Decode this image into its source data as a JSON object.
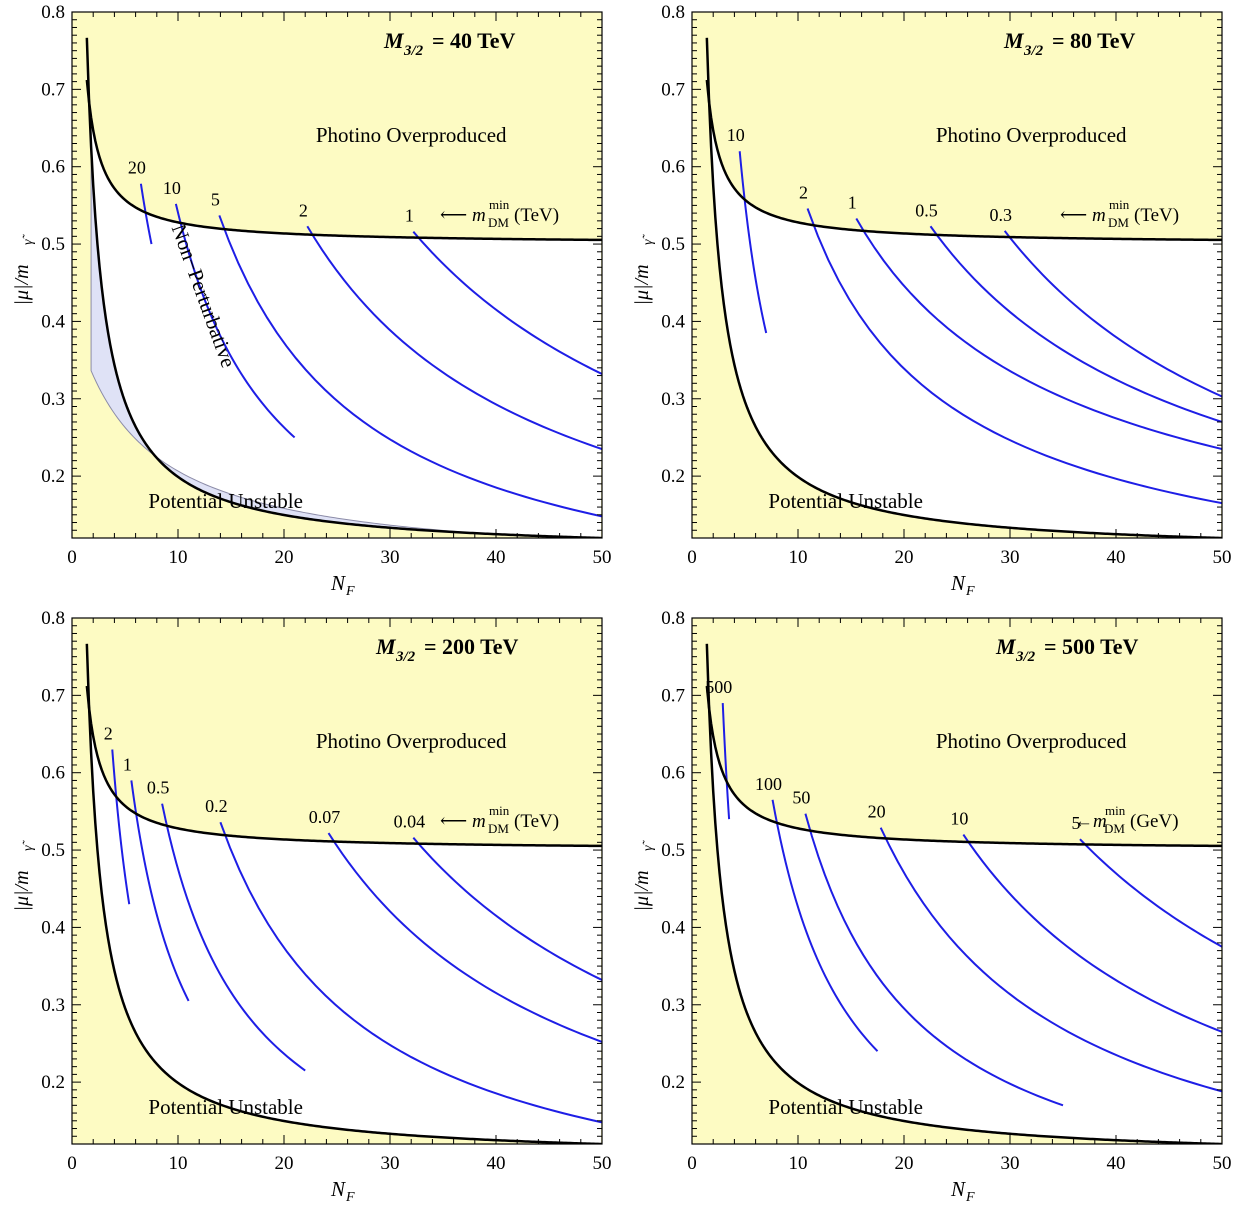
{
  "colors": {
    "region_fill": "#fdfbc3",
    "nonpert_fill": "#dfe2f6",
    "boundary": "#000000",
    "contour": "#1e1ee6"
  },
  "chart_data": [
    {
      "type": "line",
      "title_prefix": "M",
      "title_sub": "3/2",
      "title_value": "= 40 TeV",
      "xlabel_main": "N",
      "xlabel_sub": "F",
      "ylabel": "|μ|/m",
      "xlim": [
        0,
        50
      ],
      "ylim": [
        0.12,
        0.8
      ],
      "xticks": [
        "0",
        "10",
        "20",
        "30",
        "40",
        "50"
      ],
      "yticks": [
        "0.2",
        "0.3",
        "0.4",
        "0.5",
        "0.6",
        "0.7",
        "0.8"
      ],
      "region_labels": {
        "upper": "Photino Overproduced",
        "lower": "Potential Unstable",
        "nonpert": "Non−Perturbative"
      },
      "unit_label": "⟵ m",
      "unit_sup": "min",
      "unit_sub": "DM",
      "unit_tail": "(TeV)",
      "contours": [
        {
          "label": "20",
          "x": [
            6.5,
            7.5
          ],
          "y": [
            0.578,
            0.5
          ]
        },
        {
          "label": "10",
          "x": [
            9.8,
            21
          ],
          "y": [
            0.552,
            0.25
          ]
        },
        {
          "label": "5",
          "x": [
            13.9,
            50
          ],
          "y": [
            0.537,
            0.148
          ]
        },
        {
          "label": "2",
          "x": [
            22.2,
            50
          ],
          "y": [
            0.523,
            0.235
          ]
        },
        {
          "label": "1",
          "x": [
            32.2,
            50
          ],
          "y": [
            0.516,
            0.332
          ]
        }
      ]
    },
    {
      "type": "line",
      "title_prefix": "M",
      "title_sub": "3/2",
      "title_value": "= 80 TeV",
      "xlabel_main": "N",
      "xlabel_sub": "F",
      "ylabel": "|μ|/m",
      "xlim": [
        0,
        50
      ],
      "ylim": [
        0.12,
        0.8
      ],
      "xticks": [
        "0",
        "10",
        "20",
        "30",
        "40",
        "50"
      ],
      "yticks": [
        "0.2",
        "0.3",
        "0.4",
        "0.5",
        "0.6",
        "0.7",
        "0.8"
      ],
      "region_labels": {
        "upper": "Photino Overproduced",
        "lower": "Potential Unstable"
      },
      "unit_label": "⟵ m",
      "unit_sup": "min",
      "unit_sub": "DM",
      "unit_tail": "(TeV)",
      "contours": [
        {
          "label": "10",
          "x": [
            4.5,
            7
          ],
          "y": [
            0.62,
            0.385
          ]
        },
        {
          "label": "2",
          "x": [
            10.9,
            50
          ],
          "y": [
            0.546,
            0.165
          ]
        },
        {
          "label": "1",
          "x": [
            15.5,
            50
          ],
          "y": [
            0.533,
            0.235
          ]
        },
        {
          "label": "0.5",
          "x": [
            22.5,
            50
          ],
          "y": [
            0.523,
            0.27
          ]
        },
        {
          "label": "0.3",
          "x": [
            29.5,
            50
          ],
          "y": [
            0.517,
            0.303
          ]
        }
      ]
    },
    {
      "type": "line",
      "title_prefix": "M",
      "title_sub": "3/2",
      "title_value": "= 200 TeV",
      "xlabel_main": "N",
      "xlabel_sub": "F",
      "ylabel": "|μ|/m",
      "xlim": [
        0,
        50
      ],
      "ylim": [
        0.12,
        0.8
      ],
      "xticks": [
        "0",
        "10",
        "20",
        "30",
        "40",
        "50"
      ],
      "yticks": [
        "0.2",
        "0.3",
        "0.4",
        "0.5",
        "0.6",
        "0.7",
        "0.8"
      ],
      "region_labels": {
        "upper": "Photino Overproduced",
        "lower": "Potential Unstable"
      },
      "unit_label": "⟵ m",
      "unit_sup": "min",
      "unit_sub": "DM",
      "unit_tail": "(TeV)",
      "contours": [
        {
          "label": "2",
          "x": [
            3.8,
            5.4
          ],
          "y": [
            0.63,
            0.43
          ]
        },
        {
          "label": "1",
          "x": [
            5.6,
            11
          ],
          "y": [
            0.59,
            0.305
          ]
        },
        {
          "label": "0.5",
          "x": [
            8.5,
            22
          ],
          "y": [
            0.56,
            0.215
          ]
        },
        {
          "label": "0.2",
          "x": [
            14,
            50
          ],
          "y": [
            0.536,
            0.148
          ]
        },
        {
          "label": "0.07",
          "x": [
            24.2,
            50
          ],
          "y": [
            0.522,
            0.252
          ]
        },
        {
          "label": "0.04",
          "x": [
            32.2,
            50
          ],
          "y": [
            0.516,
            0.332
          ]
        }
      ]
    },
    {
      "type": "line",
      "title_prefix": "M",
      "title_sub": "3/2",
      "title_value": "= 500 TeV",
      "xlabel_main": "N",
      "xlabel_sub": "F",
      "ylabel": "|μ|/m",
      "xlim": [
        0,
        50
      ],
      "ylim": [
        0.12,
        0.8
      ],
      "xticks": [
        "0",
        "10",
        "20",
        "30",
        "40",
        "50"
      ],
      "yticks": [
        "0.2",
        "0.3",
        "0.4",
        "0.5",
        "0.6",
        "0.7",
        "0.8"
      ],
      "region_labels": {
        "upper": "Photino Overproduced",
        "lower": "Potential Unstable"
      },
      "unit_label": "←m",
      "unit_sup": "min",
      "unit_sub": "DM",
      "unit_tail": "(GeV)",
      "contours": [
        {
          "label": "500",
          "x": [
            2.9,
            3.5
          ],
          "y": [
            0.69,
            0.54
          ]
        },
        {
          "label": "100",
          "x": [
            7.6,
            17.5
          ],
          "y": [
            0.565,
            0.24
          ]
        },
        {
          "label": "50",
          "x": [
            10.7,
            35
          ],
          "y": [
            0.547,
            0.17
          ]
        },
        {
          "label": "20",
          "x": [
            17.8,
            50
          ],
          "y": [
            0.529,
            0.188
          ]
        },
        {
          "label": "10",
          "x": [
            25.6,
            50
          ],
          "y": [
            0.52,
            0.265
          ]
        },
        {
          "label": "5",
          "x": [
            36.6,
            50
          ],
          "y": [
            0.514,
            0.375
          ]
        }
      ]
    }
  ]
}
